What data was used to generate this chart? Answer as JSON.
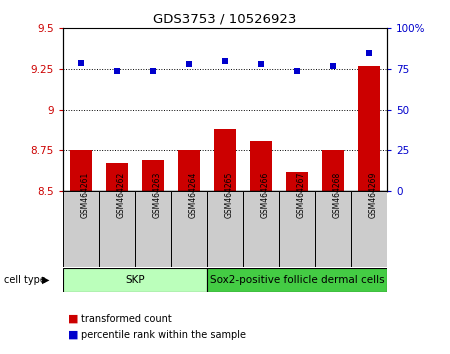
{
  "title": "GDS3753 / 10526923",
  "samples": [
    "GSM464261",
    "GSM464262",
    "GSM464263",
    "GSM464264",
    "GSM464265",
    "GSM464266",
    "GSM464267",
    "GSM464268",
    "GSM464269"
  ],
  "transformed_counts": [
    8.75,
    8.67,
    8.69,
    8.75,
    8.88,
    8.81,
    8.62,
    8.75,
    9.27
  ],
  "percentile_ranks": [
    79,
    74,
    74,
    78,
    80,
    78,
    74,
    77,
    85
  ],
  "ylim_left": [
    8.5,
    9.5
  ],
  "ylim_right": [
    0,
    100
  ],
  "yticks_left": [
    8.5,
    8.75,
    9.0,
    9.25,
    9.5
  ],
  "yticks_right": [
    0,
    25,
    50,
    75,
    100
  ],
  "ytick_labels_left": [
    "8.5",
    "8.75",
    "9",
    "9.25",
    "9.5"
  ],
  "ytick_labels_right": [
    "0",
    "25",
    "50",
    "75",
    "100%"
  ],
  "bar_color": "#cc0000",
  "dot_color": "#0000cc",
  "bar_base": 8.5,
  "cell_groups": [
    {
      "label": "SKP",
      "start": 0,
      "end": 3,
      "color": "#bbffbb"
    },
    {
      "label": "Sox2-positive follicle dermal cells",
      "start": 4,
      "end": 8,
      "color": "#44cc44"
    }
  ],
  "legend_items": [
    {
      "color": "#cc0000",
      "label": "transformed count"
    },
    {
      "color": "#0000cc",
      "label": "percentile rank within the sample"
    }
  ],
  "grid_linestyle": "dotted",
  "xlab_bg": "#cccccc",
  "cell_type_label": "cell type"
}
